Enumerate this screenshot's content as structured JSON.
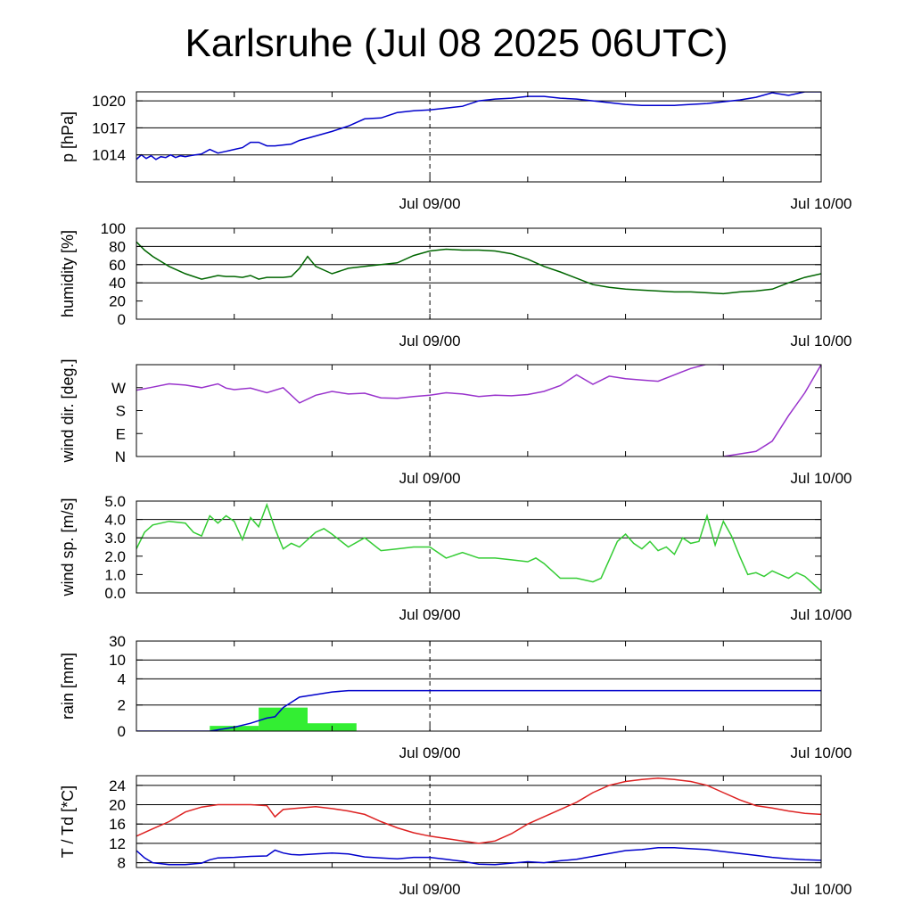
{
  "title": "Karlsruhe (Jul 08 2025 06UTC)",
  "x_ticks": [
    "Jul 09/00",
    "Jul 10/00"
  ],
  "chart_data": [
    {
      "type": "line",
      "ylabel": "p [hPa]",
      "ylim": [
        1011,
        1021
      ],
      "yticks": [
        1014,
        1017,
        1020
      ],
      "gridlines": [
        1014,
        1017,
        1020
      ],
      "x_range_hours": [
        6,
        48
      ],
      "series": [
        {
          "color": "#0000cc",
          "x": [
            6,
            6.3,
            6.6,
            6.9,
            7.2,
            7.5,
            7.8,
            8.1,
            8.4,
            8.7,
            9,
            9.3,
            9.6,
            10,
            10.5,
            11,
            11.5,
            12,
            12.5,
            13,
            13.5,
            14,
            14.5,
            15,
            15.5,
            16,
            17,
            18,
            19,
            20,
            21,
            22,
            23,
            24,
            25,
            26,
            27,
            28,
            29,
            30,
            31,
            32,
            33,
            34,
            35,
            36,
            37,
            38,
            39,
            40,
            41,
            42,
            43,
            44,
            45,
            46,
            47,
            48
          ],
          "y": [
            1013.5,
            1014,
            1013.6,
            1013.9,
            1013.5,
            1013.8,
            1013.7,
            1014,
            1013.7,
            1013.9,
            1013.8,
            1013.9,
            1014,
            1014.1,
            1014.6,
            1014.2,
            1014.4,
            1014.6,
            1014.8,
            1015.4,
            1015.4,
            1015,
            1015,
            1015.1,
            1015.2,
            1015.6,
            1016.1,
            1016.6,
            1017.2,
            1018,
            1018.1,
            1018.7,
            1018.9,
            1019,
            1019.2,
            1019.4,
            1020,
            1020.2,
            1020.3,
            1020.5,
            1020.5,
            1020.3,
            1020.2,
            1020.0,
            1019.8,
            1019.6,
            1019.5,
            1019.5,
            1019.5,
            1019.6,
            1019.7,
            1019.9,
            1020.1,
            1020.4,
            1020.9,
            1020.6,
            1021,
            1021
          ]
        }
      ]
    },
    {
      "type": "line",
      "ylabel": "humidity [%]",
      "ylim": [
        0,
        100
      ],
      "yticks": [
        0,
        20,
        40,
        60,
        80,
        100
      ],
      "gridlines": [
        40,
        60,
        80
      ],
      "x_range_hours": [
        6,
        48
      ],
      "series": [
        {
          "color": "#006600",
          "x": [
            6,
            6.5,
            7,
            8,
            9,
            10,
            10.5,
            11,
            11.5,
            12,
            12.5,
            13,
            13.5,
            14,
            14.5,
            15,
            15.5,
            16,
            16.5,
            17,
            18,
            19,
            20,
            21,
            22,
            23,
            24,
            25,
            26,
            27,
            28,
            29,
            30,
            31,
            32,
            33,
            34,
            35,
            36,
            37,
            38,
            39,
            40,
            41,
            42,
            43,
            44,
            45,
            46,
            47,
            48
          ],
          "y": [
            85,
            76,
            69,
            58,
            50,
            44,
            46,
            48,
            47,
            47,
            46,
            48,
            44,
            46,
            46,
            46,
            47,
            56,
            69,
            58,
            50,
            56,
            58,
            60,
            62,
            70,
            75,
            77,
            76,
            76,
            75,
            72,
            66,
            58,
            52,
            45,
            38,
            35,
            33,
            32,
            31,
            30,
            30,
            29,
            28,
            30,
            31,
            33,
            40,
            46,
            50
          ]
        }
      ]
    },
    {
      "type": "line",
      "ylabel": "wind dir. [deg.]",
      "ylim": [
        0,
        360
      ],
      "yticks": [
        "N",
        "E",
        "S",
        "W"
      ],
      "ytick_values": [
        0,
        90,
        180,
        270
      ],
      "gridlines": [],
      "x_range_hours": [
        6,
        48
      ],
      "series": [
        {
          "color": "#9933cc",
          "x": [
            6,
            7,
            8,
            9,
            10,
            11,
            11.5,
            12,
            13,
            14,
            15,
            16,
            17,
            18,
            19,
            20,
            21,
            22,
            23,
            24,
            25,
            26,
            27,
            28,
            29,
            30,
            31,
            32,
            33,
            34,
            35,
            36,
            37,
            38,
            39,
            40,
            41,
            42
          ],
          "y": [
            260,
            272,
            285,
            280,
            270,
            285,
            268,
            262,
            268,
            250,
            270,
            210,
            240,
            255,
            245,
            248,
            230,
            228,
            235,
            240,
            250,
            245,
            235,
            240,
            238,
            243,
            255,
            278,
            320,
            283,
            315,
            305,
            300,
            295,
            320,
            345,
            362,
            360
          ]
        },
        {
          "color": "#9933cc",
          "x": [
            42,
            43,
            44,
            45,
            46,
            47,
            48
          ],
          "y": [
            0,
            10,
            20,
            60,
            160,
            250,
            360
          ]
        }
      ]
    },
    {
      "type": "line",
      "ylabel": "wind sp. [m/s]",
      "ylim": [
        0,
        5
      ],
      "yticks": [
        "0.0",
        "1.0",
        "2.0",
        "3.0",
        "4.0",
        "5.0"
      ],
      "ytick_values": [
        0,
        1,
        2,
        3,
        4,
        5
      ],
      "gridlines": [
        3,
        4
      ],
      "x_range_hours": [
        6,
        48
      ],
      "series": [
        {
          "color": "#33cc33",
          "x": [
            6,
            6.5,
            7,
            8,
            9,
            9.5,
            10,
            10.5,
            11,
            11.5,
            12,
            12.5,
            13,
            13.5,
            14,
            14.5,
            15,
            15.5,
            16,
            17,
            17.5,
            18,
            19,
            20,
            21,
            22,
            23,
            24,
            25,
            26,
            27,
            28,
            29,
            30,
            30.5,
            31,
            32,
            32.5,
            33,
            34,
            34.5,
            35,
            35.5,
            36,
            36.5,
            37,
            37.5,
            38,
            38.5,
            39,
            39.5,
            40,
            40.5,
            41,
            41.5,
            42,
            42.5,
            43,
            43.5,
            44,
            44.5,
            45,
            45.5,
            46,
            46.5,
            47,
            47.5,
            48
          ],
          "y": [
            2.4,
            3.3,
            3.7,
            3.9,
            3.8,
            3.3,
            3.1,
            4.2,
            3.8,
            4.2,
            3.9,
            2.9,
            4.1,
            3.6,
            4.8,
            3.5,
            2.4,
            2.7,
            2.5,
            3.3,
            3.5,
            3.2,
            2.5,
            3.0,
            2.3,
            2.4,
            2.5,
            2.5,
            1.9,
            2.2,
            1.9,
            1.9,
            1.8,
            1.7,
            1.9,
            1.6,
            0.8,
            0.8,
            0.8,
            0.6,
            0.8,
            1.8,
            2.8,
            3.2,
            2.7,
            2.4,
            2.8,
            2.3,
            2.5,
            2.1,
            3.0,
            2.7,
            2.8,
            4.2,
            2.6,
            3.9,
            3.1,
            2.0,
            1.0,
            1.1,
            0.9,
            1.2,
            1.0,
            0.8,
            1.1,
            0.9,
            0.5,
            0.1
          ]
        }
      ]
    },
    {
      "type": "bar+line",
      "ylabel": "rain [mm]",
      "yticks": [
        "0",
        "2",
        "4",
        "10",
        "30"
      ],
      "ytick_values": [
        0,
        2,
        4,
        10,
        30
      ],
      "gridlines": [
        2,
        4,
        10,
        30
      ],
      "x_range_hours": [
        6,
        48
      ],
      "bars": {
        "color": "#33ee33",
        "x_start": [
          10.5,
          13.5,
          16.5
        ],
        "x_end": [
          13.5,
          16.5,
          19.5
        ],
        "values": [
          0.4,
          1.8,
          0.6
        ]
      },
      "series": [
        {
          "color": "#0000cc",
          "x": [
            6,
            9,
            10.5,
            12,
            13,
            14,
            14.5,
            15,
            15.5,
            16,
            17,
            18,
            19,
            20,
            48
          ],
          "y": [
            0,
            0,
            0,
            0.3,
            0.6,
            1.0,
            1.1,
            1.8,
            2.2,
            2.6,
            2.8,
            3.0,
            3.1,
            3.1,
            3.1
          ]
        }
      ]
    },
    {
      "type": "line",
      "ylabel": "T / Td [*C]",
      "ylim": [
        7,
        26
      ],
      "yticks": [
        8,
        12,
        16,
        20,
        24
      ],
      "gridlines": [
        8,
        12,
        16,
        20,
        24
      ],
      "x_range_hours": [
        6,
        48
      ],
      "series": [
        {
          "color": "#dd2222",
          "x": [
            6,
            7,
            8,
            9,
            10,
            11,
            12,
            13,
            14,
            14.5,
            15,
            16,
            17,
            18,
            19,
            20,
            21,
            22,
            23,
            24,
            25,
            26,
            27,
            28,
            29,
            30,
            31,
            32,
            33,
            34,
            35,
            36,
            37,
            38,
            39,
            40,
            41,
            42,
            43,
            44,
            45,
            46,
            47,
            48
          ],
          "y": [
            13.5,
            15,
            16.5,
            18.5,
            19.5,
            20,
            20,
            20,
            19.8,
            17.5,
            19,
            19.3,
            19.6,
            19.2,
            18.7,
            18,
            16.5,
            15.2,
            14.2,
            13.5,
            13,
            12.5,
            12,
            12.5,
            14,
            16,
            17.5,
            19,
            20.5,
            22.5,
            24,
            24.8,
            25.2,
            25.5,
            25.2,
            24.8,
            24,
            22.5,
            21,
            19.8,
            19.3,
            18.7,
            18.2,
            18
          ]
        },
        {
          "color": "#0000cc",
          "x": [
            6,
            6.5,
            7,
            8,
            9,
            10,
            10.5,
            11,
            12,
            13,
            14,
            14.5,
            15,
            15.5,
            16,
            17,
            18,
            19,
            20,
            21,
            22,
            23,
            24,
            25,
            26,
            27,
            28,
            29,
            30,
            31,
            32,
            33,
            34,
            35,
            36,
            37,
            38,
            39,
            40,
            41,
            42,
            43,
            44,
            45,
            46,
            47,
            48
          ],
          "y": [
            10.5,
            9,
            8,
            7.6,
            7.6,
            7.9,
            8.6,
            9,
            9.1,
            9.3,
            9.4,
            10.6,
            10,
            9.7,
            9.6,
            9.8,
            10,
            9.8,
            9.2,
            9,
            8.8,
            9.1,
            9.1,
            8.7,
            8.3,
            7.7,
            7.6,
            7.9,
            8.2,
            8,
            8.4,
            8.7,
            9.3,
            9.9,
            10.5,
            10.7,
            11.1,
            11.1,
            10.9,
            10.7,
            10.3,
            9.9,
            9.5,
            9.1,
            8.8,
            8.6,
            8.5
          ]
        }
      ]
    }
  ]
}
